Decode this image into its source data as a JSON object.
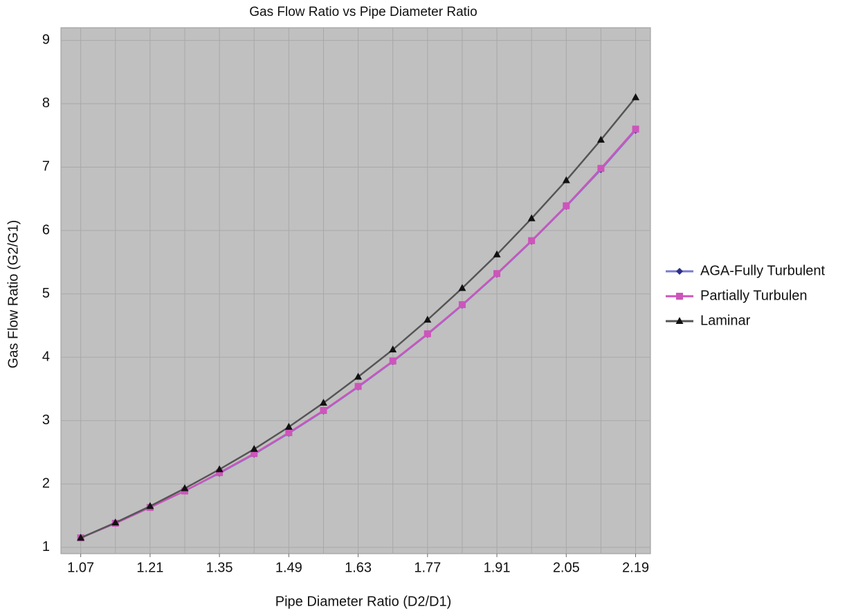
{
  "chart_data": {
    "type": "line",
    "title": "Gas Flow Ratio vs Pipe Diameter Ratio",
    "x_label": "Pipe Diameter Ratio (D2/D1)",
    "y_label": "Gas Flow Ratio (G2/G1)",
    "x": [
      1.07,
      1.14,
      1.21,
      1.28,
      1.35,
      1.42,
      1.49,
      1.56,
      1.63,
      1.7,
      1.77,
      1.84,
      1.91,
      1.98,
      2.05,
      2.12,
      2.19
    ],
    "xlim": [
      1.03,
      2.22
    ],
    "xticks": [
      1.07,
      1.21,
      1.35,
      1.49,
      1.63,
      1.77,
      1.91,
      2.05,
      2.19
    ],
    "ylim": [
      0.9,
      9.2
    ],
    "yticks": [
      1,
      2,
      3,
      4,
      5,
      6,
      7,
      8,
      9
    ],
    "grid": true,
    "legend": "right",
    "series": [
      {
        "name": "AGA-Fully Turbulent",
        "color": "#7a7ad0",
        "marker_color": "#2e2e8a",
        "marker": "diamond",
        "values": [
          1.15,
          1.38,
          1.63,
          1.89,
          2.17,
          2.47,
          2.8,
          3.15,
          3.53,
          3.93,
          4.36,
          4.82,
          5.31,
          5.83,
          6.38,
          6.96,
          7.58
        ]
      },
      {
        "name": "Partially Turbulen",
        "color": "#cc55bb",
        "marker_color": "#cc55bb",
        "marker": "square",
        "values": [
          1.15,
          1.38,
          1.63,
          1.89,
          2.18,
          2.48,
          2.81,
          3.16,
          3.54,
          3.94,
          4.37,
          4.83,
          5.32,
          5.84,
          6.39,
          6.98,
          7.6
        ]
      },
      {
        "name": "Laminar",
        "color": "#555555",
        "marker_color": "#111111",
        "marker": "triangle",
        "values": [
          1.15,
          1.39,
          1.65,
          1.93,
          2.23,
          2.55,
          2.9,
          3.28,
          3.69,
          4.12,
          4.59,
          5.09,
          5.62,
          6.19,
          6.79,
          7.43,
          8.1
        ]
      }
    ]
  }
}
